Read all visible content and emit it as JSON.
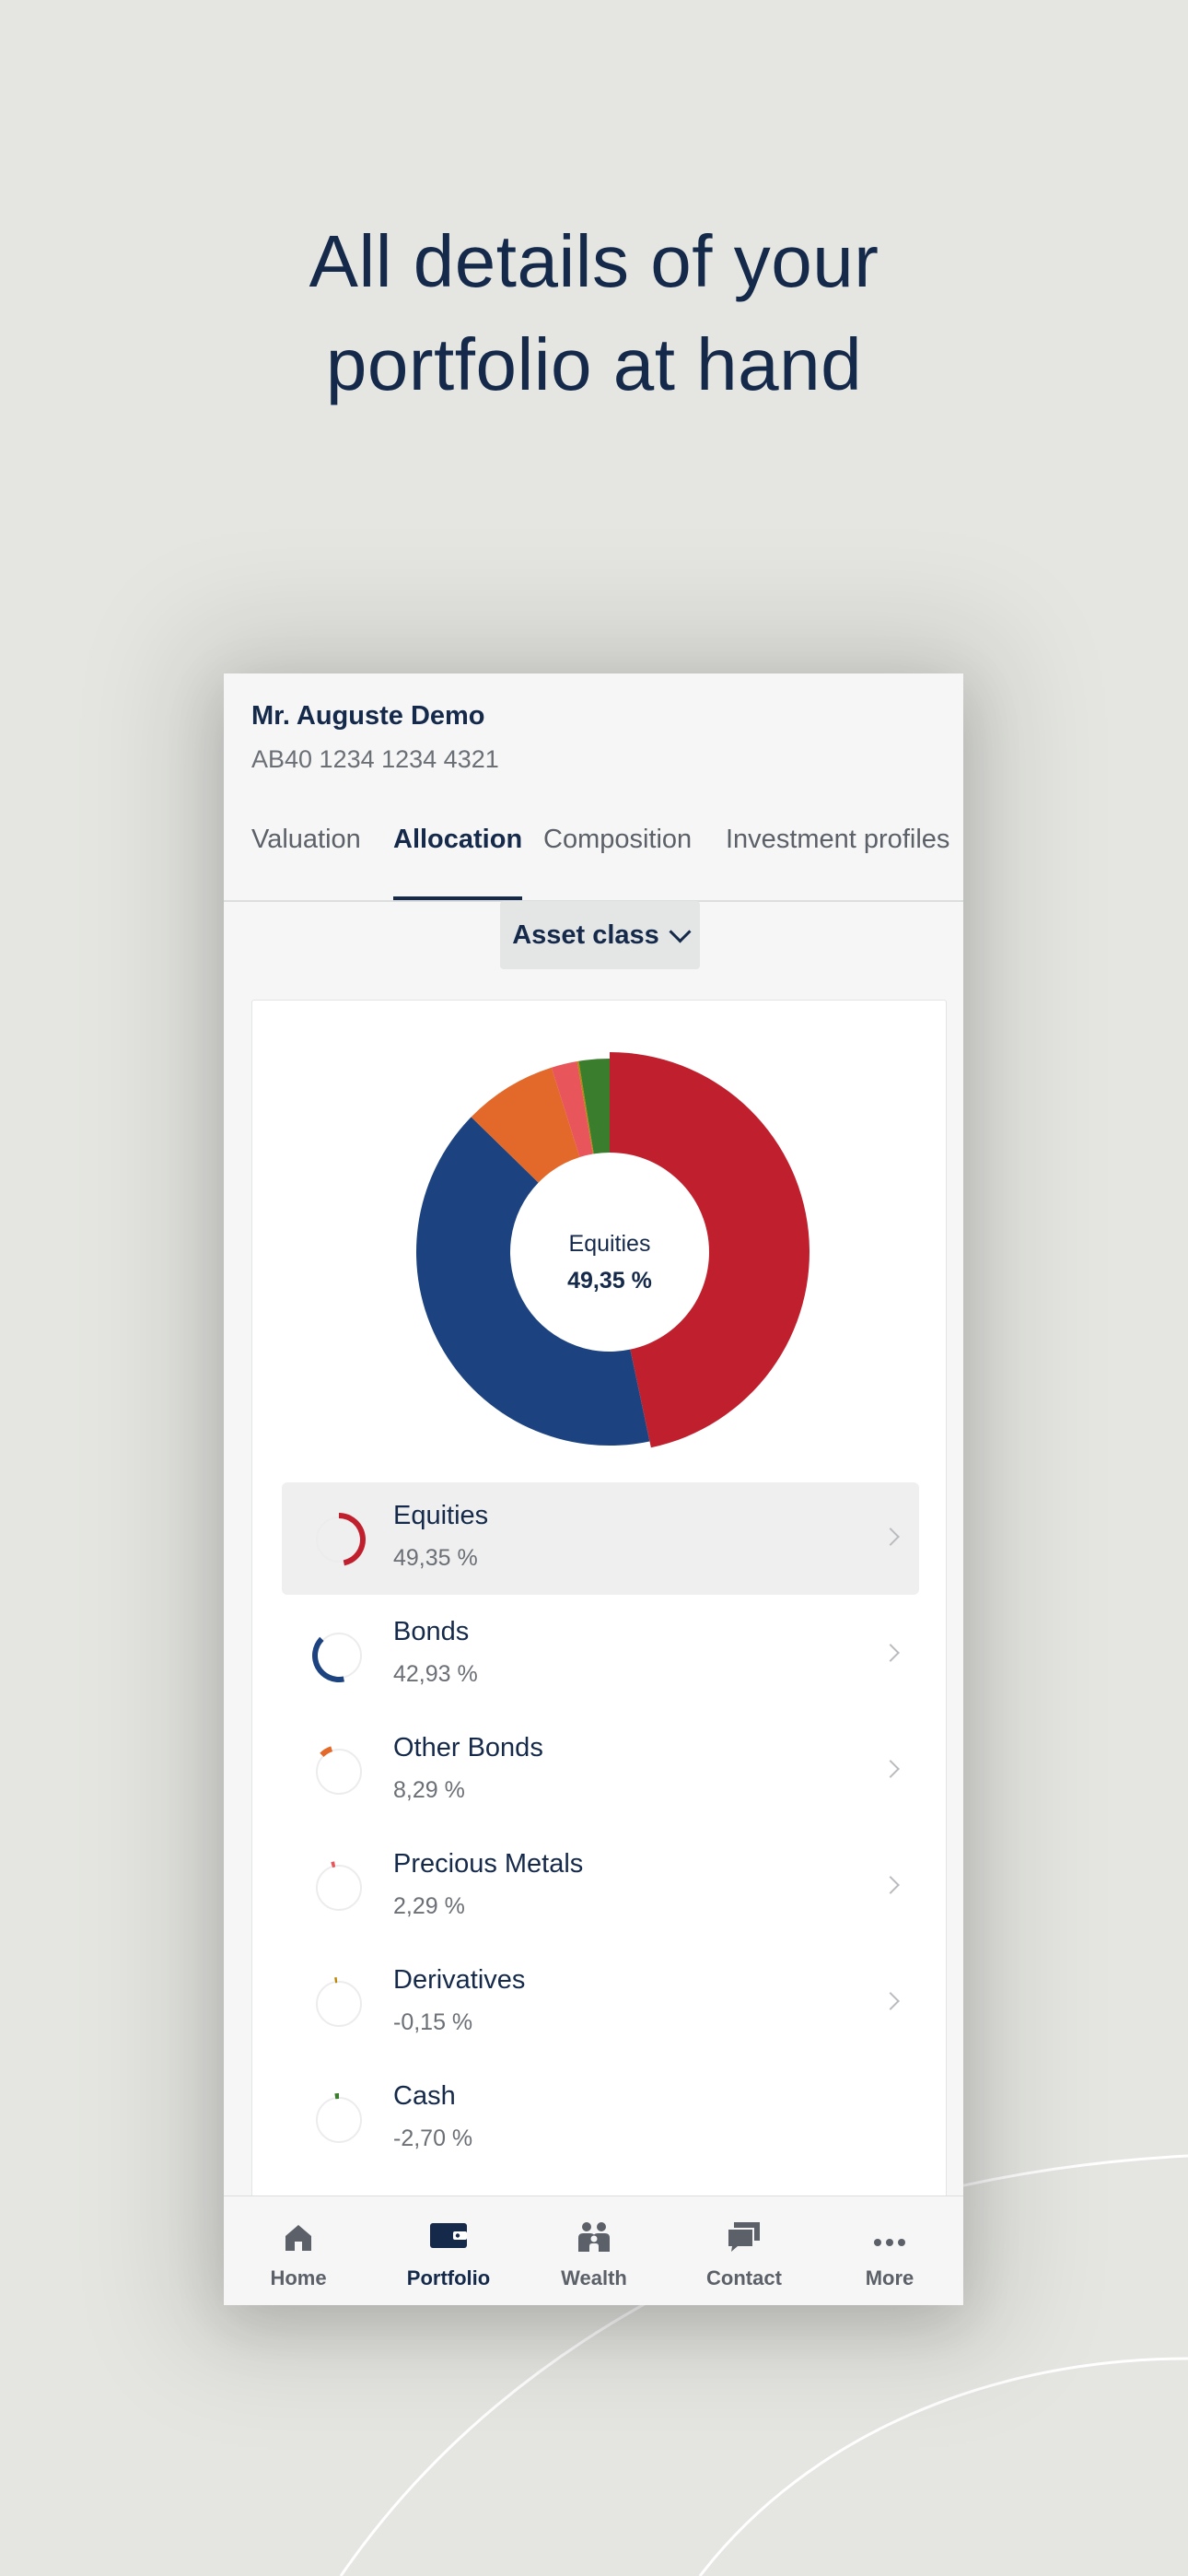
{
  "headline": {
    "line1": "All details of your",
    "line2": "portfolio at hand"
  },
  "client": {
    "name": "Mr. Auguste Demo",
    "account": "AB40 1234 1234 4321"
  },
  "tabs": [
    {
      "label": "Valuation"
    },
    {
      "label": "Allocation",
      "active": true
    },
    {
      "label": "Composition"
    },
    {
      "label": "Investment profiles"
    }
  ],
  "filter": {
    "selected": "Asset class"
  },
  "chart_data": {
    "type": "pie",
    "categories": [
      "Equities",
      "Bonds",
      "Other Bonds",
      "Precious Metals",
      "Derivatives",
      "Cash"
    ],
    "values": [
      49.35,
      42.93,
      8.29,
      2.29,
      -0.15,
      -2.7
    ],
    "center_label": "Equities",
    "center_value": "49,35 %",
    "colors": [
      "#c0202e",
      "#1c4380",
      "#e2692a",
      "#e8555a",
      "#b8860b",
      "#3a7d2c"
    ]
  },
  "allocation": [
    {
      "name": "Equities",
      "pct": "49,35 %",
      "highlight": true,
      "chevron": true
    },
    {
      "name": "Bonds",
      "pct": "42,93 %",
      "chevron": true
    },
    {
      "name": "Other Bonds",
      "pct": "8,29 %",
      "chevron": true
    },
    {
      "name": "Precious Metals",
      "pct": "2,29 %",
      "chevron": true
    },
    {
      "name": "Derivatives",
      "pct": "-0,15 %",
      "chevron": true
    },
    {
      "name": "Cash",
      "pct": "-2,70 %",
      "chevron": false
    }
  ],
  "nav": [
    {
      "label": "Home",
      "icon": "home-icon"
    },
    {
      "label": "Portfolio",
      "icon": "wallet-icon",
      "active": true
    },
    {
      "label": "Wealth",
      "icon": "family-icon"
    },
    {
      "label": "Contact",
      "icon": "chat-icon"
    },
    {
      "label": "More",
      "icon": "more-icon"
    }
  ]
}
